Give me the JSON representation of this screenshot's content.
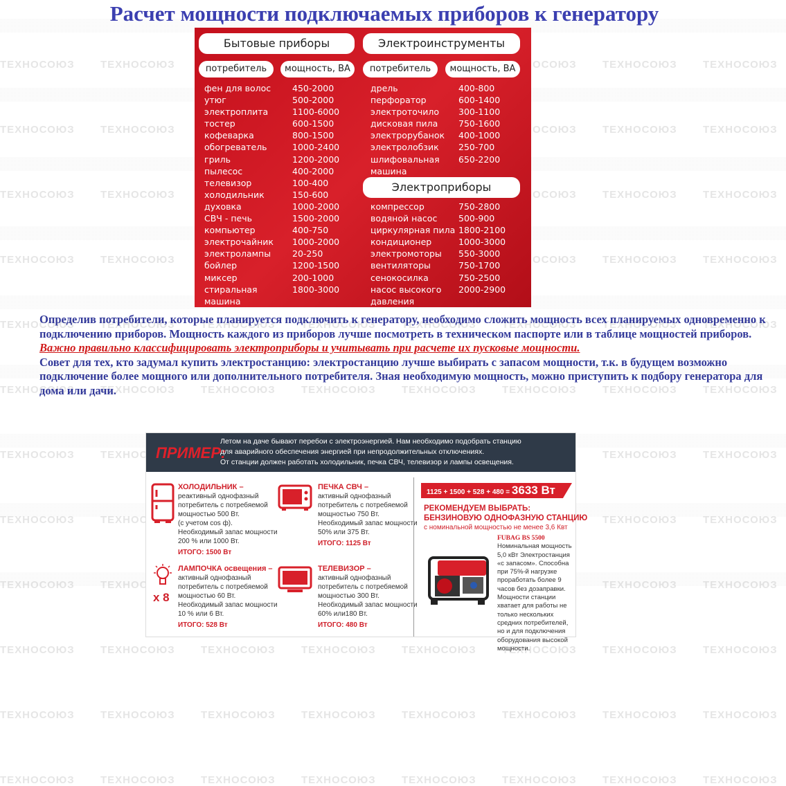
{
  "title": "Расчет мощности подключаемых приборов к генератору",
  "watermark": "ТЕХНОСОЮЗ",
  "table": {
    "household": {
      "title": "Бытовые приборы",
      "col1": "потребитель",
      "col2": "мощность, ВА",
      "names": "фен для волос\nутюг\nэлектроплита\nтостер\nкофеварка\nобогреватель\nгриль\nпылесос\nтелевизор\nхолодильник\nдуховка\nСВЧ - печь\nкомпьютер\nэлектрочайник\nэлектролампы\nбойлер\nмиксер\nстиральная\nмашина",
      "values": "450-2000\n500-2000\n1100-6000\n600-1500\n800-1500\n1000-2400\n1200-2000\n400-2000\n100-400\n150-600\n1000-2000\n1500-2000\n400-750\n1000-2000\n20-250\n1200-1500\n200-1000\n1800-3000"
    },
    "tools": {
      "title": "Электроинструменты",
      "col1": "потребитель",
      "col2": "мощность, ВА",
      "names": "дрель\nперфоратор\nэлектроточило\nдисковая пила\nэлектрорубанок\nэлектролобзик\nшлифовальная\nмашина",
      "values": "400-800\n600-1400\n300-1100\n750-1600\n400-1000\n250-700\n650-2200"
    },
    "appliances": {
      "title": "Электроприборы",
      "names": "компрессор\nводяной насос\nциркулярная пила\nкондиционер\nэлектромоторы\nвентиляторы\nсенокосилка\nнасос высокого\nдавления",
      "values": "750-2800\n500-900\n1800-2100\n1000-3000\n550-3000\n750-1700\n750-2500\n2000-2900"
    }
  },
  "text": {
    "p1": "Определив потребители, которые планируется подключить к генератору, необходимо сложить мощность всех планируемых одновременно к подключению приборов. Мощность каждого из приборов лучше посмотреть в техническом паспорте или в таблице мощностей приборов. ",
    "link": "Важно правильно классифицировать электроприборы и учитывать при расчете их пусковые мощности.",
    "p2": "Совет для тех, кто задумал купить электростанцию: электростанцию лучше выбирать с запасом мощности, т.к. в будущем возможно подключение более мощного или дополнительного потребителя. Зная необходимую мощность, можно приступить к подбору генератора для дома или дачи."
  },
  "example": {
    "label": "ПРИМЕР:",
    "intro": "Летом на даче бывают перебои с электроэнергией. Нам необходимо подобрать станцию\nдля аварийного обеспечения энергией при непродолжительных отключениях.\nОт станции должен работать холодильник, печка СВЧ, телевизор и лампы освещения.",
    "items": [
      {
        "title": "ХОЛОДИЛЬНИК –",
        "body": "реактивный однофазный\nпотребитель с потребяемой\nмощностью 500 Вт.\n(с учетом cos ф).\nНеобходимый запас мощности\n200 % или 1000 Вт.",
        "total": "ИТОГО: 1500 Вт"
      },
      {
        "title": "ПЕЧКА СВЧ –",
        "body": "активный однофазный\nпотребитель с потребяемой\nмощностью 750 Вт.\nНеобходимый запас мощности\n50% или 375 Вт.",
        "total": "ИТОГО: 1125 Вт"
      },
      {
        "title": "ЛАМПОЧКА освещения –",
        "body": "активный однофазный\nпотребитель с потребяемой\nмощностью 60 Вт.\nНеобходимый запас мощности\n10 % или 6 Вт.",
        "total": "ИТОГО: 528 Вт",
        "multiplier": "x 8"
      },
      {
        "title": "ТЕЛЕВИЗОР –",
        "body": "активный однофазный\nпотребитель с потребяемой\nмощностью 300 Вт.\nНеобходимый запас мощности\n60% или180 Вт.",
        "total": "ИТОГО: 480 Вт"
      }
    ],
    "sum_formula": "1125 + 1500 + 528 + 480 = ",
    "sum_total": "3633 Вт",
    "recommend": "РЕКОМЕНДУЕМ ВЫБРАТЬ:\nБЕНЗИНОВУЮ ОДНОФАЗНУЮ СТАНЦИЮ",
    "recommend_sub": "с номинальной мощностью не менее 3,6 Квт",
    "model": "FUBAG BS 5500",
    "model_desc": "Номинальная мощность 5,0 кВт\nЭлектростанция «с запасом». Способна при 75%-й нагрузке проработать более 9 часов без дозаправки. Мощности станции хватает для работы не только нескольких средних потребителей, но и для подключения оборудования высокой мощности."
  },
  "colors": {
    "title": "#3b3fb0",
    "text": "#333a9a",
    "red": "#d0202a",
    "table_bg": "#c4101c",
    "header_bg": "#2f3a48"
  }
}
